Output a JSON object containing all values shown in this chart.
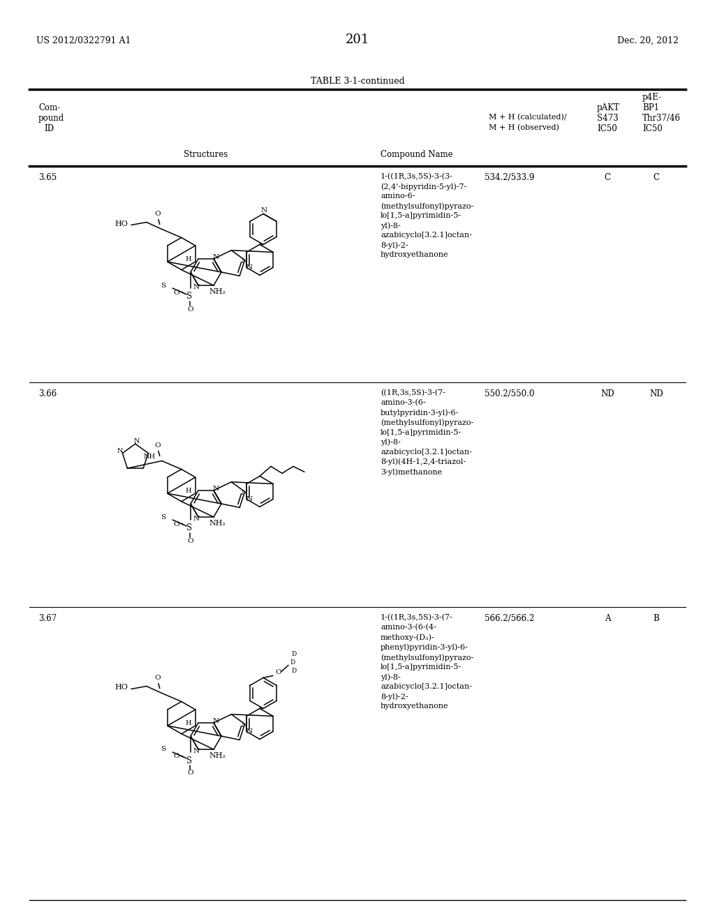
{
  "page_number": "201",
  "patent_number": "US 2012/0322791 A1",
  "patent_date": "Dec. 20, 2012",
  "table_title": "TABLE 3-1-continued",
  "background_color": "#ffffff",
  "text_color": "#000000",
  "rows": [
    {
      "id": "3.65",
      "compound_name": "1-((1R,3s,5S)-3-(3-\n(2,4'-bipyridin-5-yl)-7-\namino-6-\n(methylsulfonyl)pyrazo-\nlo[1,5-a]pyrimidin-5-\nyl)-8-\nazabicyclo[3.2.1]octan-\n8-yl)-2-\nhydroxyethanone",
      "mh": "534.2/533.9",
      "pakt": "C",
      "p4e": "C"
    },
    {
      "id": "3.66",
      "compound_name": "((1R,3s,5S)-3-(7-\namino-3-(6-\nbutylpyridin-3-yl)-6-\n(methylsulfonyl)pyrazo-\nlo[1,5-a]pyrimidin-5-\nyl)-8-\nazabicyclo[3.2.1]octan-\n8-yl)(4H-1,2,4-triazol-\n3-yl)methanone",
      "mh": "550.2/550.0",
      "pakt": "ND",
      "p4e": "ND"
    },
    {
      "id": "3.67",
      "compound_name": "1-((1R,3s,5S)-3-(7-\namino-3-(6-(4-\nmethoxy-(D₃)-\nphenyl)pyridin-3-yl)-6-\n(methylsulfonyl)pyrazo-\nlo[1,5-a]pyrimidin-5-\nyl)-8-\nazabicyclo[3.2.1]octan-\n8-yl)-2-\nhydroxyethanone",
      "mh": "566.2/566.2",
      "pakt": "A",
      "p4e": "B"
    }
  ]
}
